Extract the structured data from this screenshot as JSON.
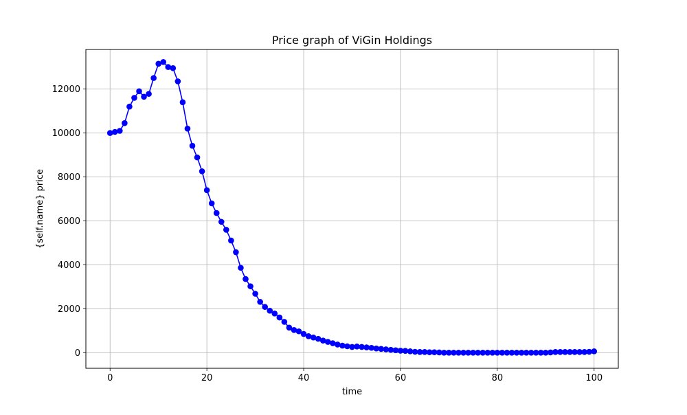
{
  "chart_data": {
    "type": "line",
    "title": "Price graph of ViGin Holdings",
    "xlabel": "time",
    "ylabel": "{self.name} price",
    "xlim": [
      -5,
      105
    ],
    "ylim": [
      -700,
      13800
    ],
    "xticks": [
      0,
      20,
      40,
      60,
      80,
      100
    ],
    "yticks": [
      0,
      2000,
      4000,
      6000,
      8000,
      10000,
      12000
    ],
    "grid": true,
    "legend": "none",
    "marker": "circle",
    "color": "#0000ff",
    "series": [
      {
        "x": [
          0,
          1,
          2,
          3,
          4,
          5,
          6,
          7,
          8,
          9,
          10,
          11,
          12,
          13,
          14,
          15,
          16,
          17,
          18,
          19,
          20,
          21,
          22,
          23,
          24,
          25,
          26,
          27,
          28,
          29,
          30,
          31,
          32,
          33,
          34,
          35,
          36,
          37,
          38,
          39,
          40,
          41,
          42,
          43,
          44,
          45,
          46,
          47,
          48,
          49,
          50,
          51,
          52,
          53,
          54,
          55,
          56,
          57,
          58,
          59,
          60,
          61,
          62,
          63,
          64,
          65,
          66,
          67,
          68,
          69,
          70,
          71,
          72,
          73,
          74,
          75,
          76,
          77,
          78,
          79,
          80,
          81,
          82,
          83,
          84,
          85,
          86,
          87,
          88,
          89,
          90,
          91,
          92,
          93,
          94,
          95,
          96,
          97,
          98,
          99,
          100
        ],
        "y": [
          10000,
          10050,
          10100,
          10450,
          11200,
          11600,
          11900,
          11650,
          11780,
          12500,
          13150,
          13230,
          13000,
          12950,
          12350,
          11400,
          10200,
          9420,
          8890,
          8260,
          7400,
          6800,
          6360,
          5960,
          5600,
          5110,
          4580,
          3870,
          3360,
          3030,
          2690,
          2320,
          2090,
          1920,
          1790,
          1610,
          1410,
          1150,
          1040,
          980,
          860,
          760,
          700,
          640,
          560,
          500,
          440,
          380,
          330,
          300,
          270,
          290,
          270,
          250,
          230,
          200,
          180,
          160,
          140,
          120,
          100,
          90,
          70,
          50,
          40,
          40,
          30,
          30,
          20,
          10,
          10,
          10,
          10,
          10,
          10,
          10,
          10,
          10,
          10,
          10,
          10,
          10,
          10,
          10,
          10,
          10,
          10,
          10,
          10,
          10,
          10,
          20,
          40,
          40,
          40,
          40,
          40,
          40,
          40,
          50,
          70
        ]
      }
    ]
  }
}
